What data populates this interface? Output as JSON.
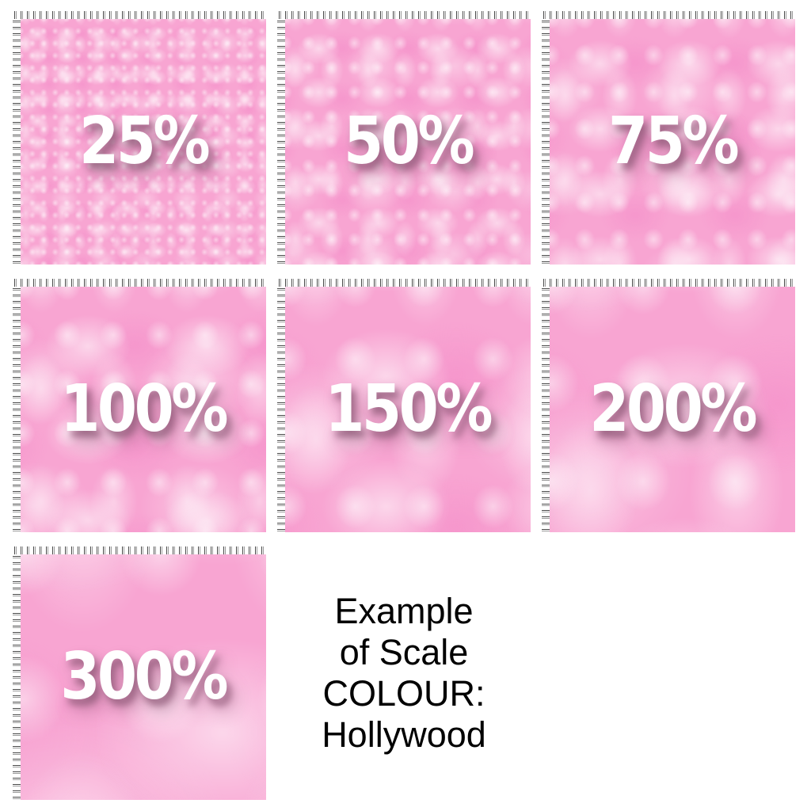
{
  "sheet": {
    "description_labels": {
      "caption_line1": "Example",
      "caption_line2": "of Scale",
      "caption_line3": "COLOUR:",
      "caption_line4": "Hollywood"
    }
  },
  "caption": {
    "lines": [
      "Example",
      "of Scale",
      "COLOUR:",
      "Hollywood"
    ]
  },
  "swatches": [
    {
      "label": "25%",
      "scale_percent": 25,
      "scale_factor": 0.25
    },
    {
      "label": "50%",
      "scale_percent": 50,
      "scale_factor": 0.5
    },
    {
      "label": "75%",
      "scale_percent": 75,
      "scale_factor": 0.75
    },
    {
      "label": "100%",
      "scale_percent": 100,
      "scale_factor": 1
    },
    {
      "label": "150%",
      "scale_percent": 150,
      "scale_factor": 1.5
    },
    {
      "label": "200%",
      "scale_percent": 200,
      "scale_factor": 2
    },
    {
      "label": "300%",
      "scale_percent": 300,
      "scale_factor": 3
    }
  ],
  "colors": {
    "swatch_pink": "#F8A5D2",
    "texture_highlight": "#FFFFFF",
    "label_text": "#FFFFFF",
    "label_shadow": "rgba(146,92,122,0.85)",
    "caption_text": "#000000",
    "ruler_background": "#FFFFFF",
    "ruler_tick_dark": "#4A4A4A",
    "ruler_tick_light": "#9A9A9A",
    "page_background": "#FFFFFF"
  }
}
